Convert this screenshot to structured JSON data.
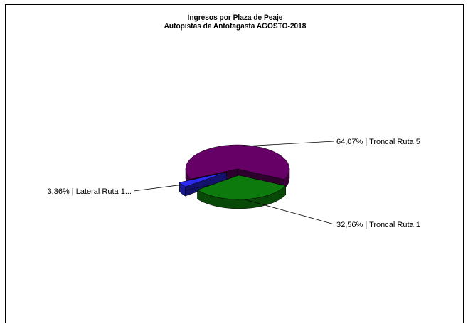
{
  "chart_data": {
    "type": "pie",
    "style": "3d-exploded",
    "title": "Ingresos por Plaza de Peaje",
    "subtitle": "Autopistas de Antofagasta AGOSTO-2018",
    "slices": [
      {
        "label": "Troncal Ruta 5",
        "value": 64.07,
        "label_text": "64,07% | Troncal Ruta 5",
        "color": "#660066"
      },
      {
        "label": "Troncal Ruta 1",
        "value": 32.56,
        "label_text": "32,56% | Troncal Ruta 1",
        "color": "#0d7a0d"
      },
      {
        "label": "Lateral Ruta 1...",
        "value": 3.36,
        "label_text": "3,36% | Lateral Ruta 1...",
        "color": "#2a2af0"
      }
    ],
    "legend": "none"
  }
}
